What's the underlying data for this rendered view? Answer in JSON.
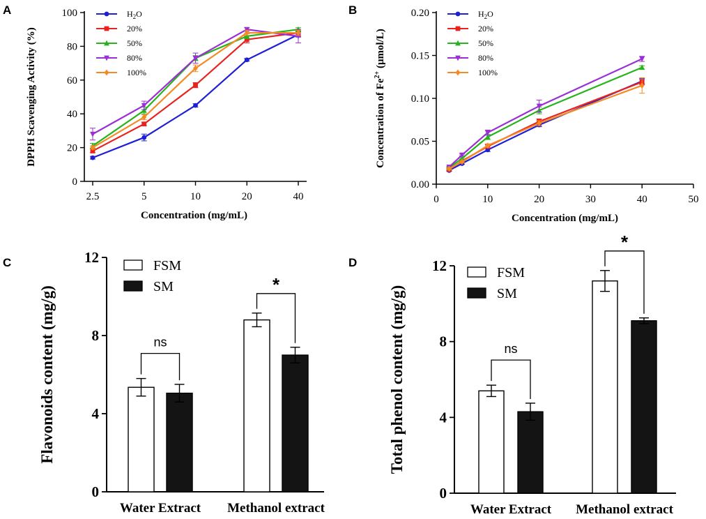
{
  "chart_data": [
    {
      "panel": "A",
      "type": "line",
      "title": "",
      "xlabel": "Concentration (mg/mL)",
      "ylabel": "DPPH  Scavenging Activity (%)",
      "x_scale": "categorical",
      "categories": [
        "2.5",
        "5",
        "10",
        "20",
        "40"
      ],
      "ylim": [
        0,
        100
      ],
      "yticks": [
        "0",
        "20",
        "40",
        "60",
        "80",
        "100"
      ],
      "legend_position": "top-left",
      "series": [
        {
          "name": "H2O",
          "color": "#1f1fd6",
          "marker": "circle",
          "values": [
            14,
            26,
            45,
            72,
            87
          ],
          "errors": [
            0.8,
            2,
            1,
            0.8,
            1.5
          ]
        },
        {
          "name": "20%",
          "color": "#e8231f",
          "marker": "square",
          "values": [
            18,
            34,
            57,
            84,
            88
          ],
          "errors": [
            1,
            1,
            1.5,
            2,
            2
          ]
        },
        {
          "name": "50%",
          "color": "#27b31c",
          "marker": "triangle-up",
          "values": [
            21,
            42,
            73,
            86,
            90
          ],
          "errors": [
            1.5,
            2,
            1.5,
            1.5,
            1
          ]
        },
        {
          "name": "80%",
          "color": "#9a2fd6",
          "marker": "triangle-down",
          "values": [
            28,
            45,
            73,
            90,
            86
          ],
          "errors": [
            3.5,
            2.5,
            3,
            1,
            4
          ]
        },
        {
          "name": "100%",
          "color": "#f58a24",
          "marker": "diamond",
          "values": [
            20,
            38,
            67,
            88,
            88
          ],
          "errors": [
            1,
            1.5,
            2,
            1.5,
            1.5
          ]
        }
      ]
    },
    {
      "panel": "B",
      "type": "line",
      "title": "",
      "xlabel": "Concentration (mg/mL)",
      "ylabel_prefix": "Concentration of Fe",
      "ylabel_sup": "2+",
      "ylabel_suffix": " (μmol/L)",
      "x": [
        2.5,
        5,
        10,
        20,
        40
      ],
      "xlim": [
        0,
        50
      ],
      "xticks": [
        "0",
        "10",
        "20",
        "30",
        "40",
        "50"
      ],
      "ylim": [
        0,
        0.2
      ],
      "yticks": [
        "0.00",
        "0.05",
        "0.10",
        "0.15",
        "0.20"
      ],
      "legend_position": "top-left",
      "series": [
        {
          "name": "H2O",
          "color": "#1f1fd6",
          "marker": "circle",
          "values": [
            0.016,
            0.024,
            0.04,
            0.069,
            0.12
          ],
          "errors": [
            0.001,
            0.001,
            0.002,
            0.002,
            0.003
          ]
        },
        {
          "name": "20%",
          "color": "#e8231f",
          "marker": "square",
          "values": [
            0.017,
            0.027,
            0.044,
            0.073,
            0.119
          ],
          "errors": [
            0.001,
            0.001,
            0.002,
            0.003,
            0.003
          ]
        },
        {
          "name": "50%",
          "color": "#27b31c",
          "marker": "triangle-up",
          "values": [
            0.019,
            0.03,
            0.055,
            0.086,
            0.136
          ],
          "errors": [
            0.001,
            0.001,
            0.003,
            0.004,
            0.002
          ]
        },
        {
          "name": "80%",
          "color": "#9a2fd6",
          "marker": "triangle-down",
          "values": [
            0.02,
            0.034,
            0.06,
            0.091,
            0.146
          ],
          "errors": [
            0.001,
            0.001,
            0.003,
            0.007,
            0.003
          ]
        },
        {
          "name": "100%",
          "color": "#f58a24",
          "marker": "diamond",
          "values": [
            0.018,
            0.026,
            0.045,
            0.071,
            0.115
          ],
          "errors": [
            0.001,
            0.001,
            0.002,
            0.003,
            0.009
          ]
        }
      ]
    },
    {
      "panel": "C",
      "type": "bar",
      "title": "",
      "xlabel": "",
      "ylabel": "Flavonoids content (mg/g)",
      "categories": [
        "Water Extract",
        "Methanol extract"
      ],
      "ylim": [
        0,
        12
      ],
      "yticks": [
        "0",
        "4",
        "8",
        "12"
      ],
      "legend_position": "top-left",
      "series": [
        {
          "name": "FSM",
          "fill": "#ffffff",
          "values": [
            5.35,
            8.8
          ],
          "errors": [
            0.45,
            0.35
          ]
        },
        {
          "name": "SM",
          "fill": "#141414",
          "values": [
            5.05,
            7.0
          ],
          "errors": [
            0.45,
            0.4
          ]
        }
      ],
      "significance": [
        "ns",
        "*"
      ]
    },
    {
      "panel": "D",
      "type": "bar",
      "title": "",
      "xlabel": "",
      "ylabel": "Total phenol content (mg/g)",
      "categories": [
        "Water Extract",
        "Methanol extract"
      ],
      "ylim": [
        0,
        12
      ],
      "yticks": [
        "0",
        "4",
        "8",
        "12"
      ],
      "legend_position": "top-left",
      "series": [
        {
          "name": "FSM",
          "fill": "#ffffff",
          "values": [
            5.4,
            11.2
          ],
          "errors": [
            0.3,
            0.55
          ]
        },
        {
          "name": "SM",
          "fill": "#141414",
          "values": [
            4.3,
            9.1
          ],
          "errors": [
            0.45,
            0.15
          ]
        }
      ],
      "significance": [
        "ns",
        "*"
      ]
    }
  ]
}
